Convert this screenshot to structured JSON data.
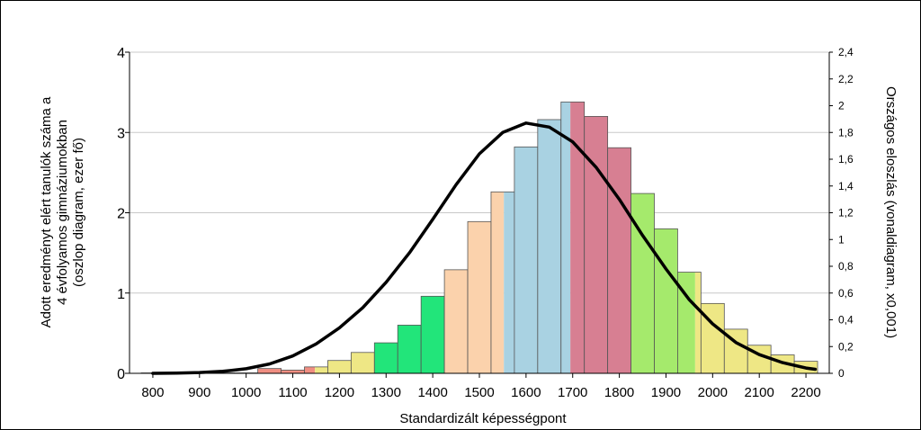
{
  "chart_data": {
    "type": "bar",
    "title": "",
    "xlabel": "Standardizált képességpont",
    "ylabel_lines": [
      "Adott eredményt elért tanulók száma a",
      "4 évfolyamos gimnáziumokban",
      "(oszlop diagram, ezer fő)"
    ],
    "y2label": "Országos eloszlás (vonaldiagram, x0,001)",
    "xlim": [
      750,
      2250
    ],
    "ylim": [
      0,
      4
    ],
    "y2lim": [
      0,
      2.4
    ],
    "x_ticks": [
      "800",
      "900",
      "1000",
      "1100",
      "1200",
      "1300",
      "1400",
      "1500",
      "1600",
      "1700",
      "1800",
      "1900",
      "2000",
      "2100",
      "2200"
    ],
    "y_ticks": [
      "0",
      "1",
      "2",
      "3",
      "4"
    ],
    "y2_ticks": [
      "0",
      "0,2",
      "0,4",
      "0,6",
      "0,8",
      "1",
      "1,2",
      "1,4",
      "1,6",
      "1,8",
      "2",
      "2,2",
      "2,4"
    ],
    "grid": true,
    "bin_width": 50,
    "bars": [
      {
        "x": 800,
        "value": 0.005,
        "segments": [
          {
            "color": "#ee7777",
            "fraction": 1
          }
        ]
      },
      {
        "x": 850,
        "value": 0.005,
        "segments": [
          {
            "color": "#ee7777",
            "fraction": 1
          }
        ]
      },
      {
        "x": 900,
        "value": 0.005,
        "segments": [
          {
            "color": "#ee7777",
            "fraction": 1
          }
        ]
      },
      {
        "x": 950,
        "value": 0.005,
        "segments": [
          {
            "color": "#ee7777",
            "fraction": 1
          }
        ]
      },
      {
        "x": 1000,
        "value": 0.005,
        "segments": [
          {
            "color": "#ee7777",
            "fraction": 1
          }
        ]
      },
      {
        "x": 1050,
        "value": 0.06,
        "segments": [
          {
            "color": "#f08e82",
            "fraction": 1
          }
        ]
      },
      {
        "x": 1100,
        "value": 0.04,
        "segments": [
          {
            "color": "#f08e82",
            "fraction": 1
          }
        ]
      },
      {
        "x": 1150,
        "value": 0.08,
        "segments": [
          {
            "color": "#f08e82",
            "fraction": 0.45
          },
          {
            "color": "#eee785",
            "fraction": 0.55
          }
        ]
      },
      {
        "x": 1200,
        "value": 0.16,
        "segments": [
          {
            "color": "#eee785",
            "fraction": 1
          }
        ]
      },
      {
        "x": 1250,
        "value": 0.26,
        "segments": [
          {
            "color": "#eee785",
            "fraction": 1
          }
        ]
      },
      {
        "x": 1300,
        "value": 0.38,
        "segments": [
          {
            "color": "#22e57a",
            "fraction": 1
          }
        ]
      },
      {
        "x": 1350,
        "value": 0.6,
        "segments": [
          {
            "color": "#22e57a",
            "fraction": 1
          }
        ]
      },
      {
        "x": 1400,
        "value": 0.96,
        "segments": [
          {
            "color": "#22e57a",
            "fraction": 1
          }
        ]
      },
      {
        "x": 1450,
        "value": 1.29,
        "segments": [
          {
            "color": "#fbd2ac",
            "fraction": 1
          }
        ]
      },
      {
        "x": 1500,
        "value": 1.89,
        "segments": [
          {
            "color": "#fbd2ac",
            "fraction": 1
          }
        ]
      },
      {
        "x": 1550,
        "value": 2.26,
        "segments": [
          {
            "color": "#fbd2ac",
            "fraction": 0.55
          },
          {
            "color": "#a9d2e2",
            "fraction": 0.45
          }
        ]
      },
      {
        "x": 1600,
        "value": 2.82,
        "segments": [
          {
            "color": "#a9d2e2",
            "fraction": 1
          }
        ]
      },
      {
        "x": 1650,
        "value": 3.16,
        "segments": [
          {
            "color": "#a9d2e2",
            "fraction": 1
          }
        ]
      },
      {
        "x": 1700,
        "value": 3.38,
        "segments": [
          {
            "color": "#a9d2e2",
            "fraction": 0.4
          },
          {
            "color": "#d77f92",
            "fraction": 0.6
          }
        ]
      },
      {
        "x": 1750,
        "value": 3.2,
        "segments": [
          {
            "color": "#d77f92",
            "fraction": 1
          }
        ]
      },
      {
        "x": 1800,
        "value": 2.81,
        "segments": [
          {
            "color": "#d77f92",
            "fraction": 1
          }
        ]
      },
      {
        "x": 1850,
        "value": 2.24,
        "segments": [
          {
            "color": "#a5ea6c",
            "fraction": 1
          }
        ]
      },
      {
        "x": 1900,
        "value": 1.8,
        "segments": [
          {
            "color": "#a5ea6c",
            "fraction": 1
          }
        ]
      },
      {
        "x": 1950,
        "value": 1.26,
        "segments": [
          {
            "color": "#a5ea6c",
            "fraction": 0.75
          },
          {
            "color": "#eee785",
            "fraction": 0.25
          }
        ]
      },
      {
        "x": 2000,
        "value": 0.87,
        "segments": [
          {
            "color": "#eee785",
            "fraction": 1
          }
        ]
      },
      {
        "x": 2050,
        "value": 0.55,
        "segments": [
          {
            "color": "#eee785",
            "fraction": 1
          }
        ]
      },
      {
        "x": 2100,
        "value": 0.35,
        "segments": [
          {
            "color": "#eee785",
            "fraction": 1
          }
        ]
      },
      {
        "x": 2150,
        "value": 0.23,
        "segments": [
          {
            "color": "#eee785",
            "fraction": 1
          }
        ]
      },
      {
        "x": 2200,
        "value": 0.15,
        "segments": [
          {
            "color": "#eee785",
            "fraction": 1
          }
        ]
      }
    ],
    "line": {
      "axis": "y2",
      "color": "#000000",
      "x": [
        800,
        850,
        900,
        950,
        1000,
        1050,
        1100,
        1150,
        1200,
        1250,
        1300,
        1350,
        1400,
        1450,
        1500,
        1550,
        1600,
        1650,
        1700,
        1750,
        1800,
        1850,
        1900,
        1950,
        2000,
        2050,
        2100,
        2150,
        2200,
        2220
      ],
      "y": [
        0.0,
        0.002,
        0.006,
        0.015,
        0.034,
        0.07,
        0.13,
        0.22,
        0.34,
        0.49,
        0.68,
        0.9,
        1.15,
        1.41,
        1.64,
        1.8,
        1.87,
        1.84,
        1.73,
        1.54,
        1.3,
        1.03,
        0.78,
        0.55,
        0.37,
        0.23,
        0.14,
        0.08,
        0.04,
        0.03
      ]
    }
  }
}
